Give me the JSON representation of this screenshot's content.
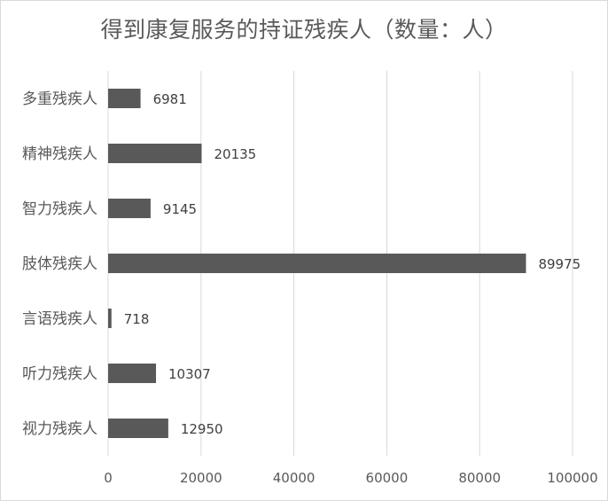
{
  "chart_data": {
    "type": "bar",
    "orientation": "horizontal",
    "title": "得到康复服务的持证残疾人（数量：人）",
    "categories": [
      "多重残疾人",
      "精神残疾人",
      "智力残疾人",
      "肢体残疾人",
      "言语残疾人",
      "听力残疾人",
      "视力残疾人"
    ],
    "values": [
      6981,
      20135,
      9145,
      89975,
      718,
      10307,
      12950
    ],
    "data_labels": [
      "6981",
      "20135",
      "9145",
      "89975",
      "718",
      "10307",
      "12950"
    ],
    "xlim": [
      0,
      100000
    ],
    "x_ticks": [
      "0",
      "20000",
      "40000",
      "60000",
      "80000",
      "100000"
    ],
    "xlabel": "",
    "ylabel": "",
    "grid": true,
    "legend": "none",
    "bar_color": "#595959",
    "gridline_color": "#d9d9d9",
    "text_color": "#595959"
  }
}
